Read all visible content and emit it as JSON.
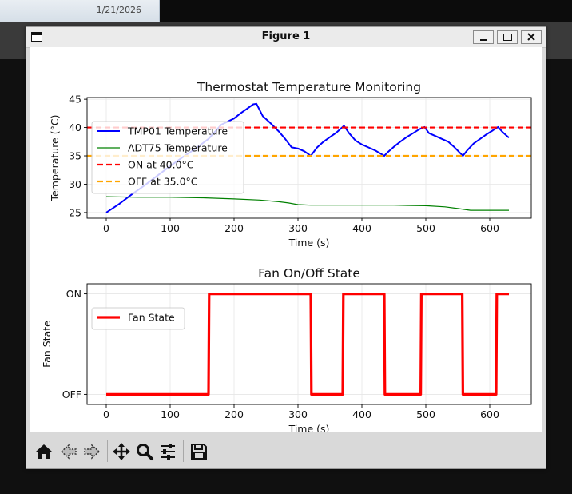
{
  "desktop": {
    "date": "1/21/2026"
  },
  "window": {
    "title": "Figure 1",
    "controls": [
      "minimize",
      "maximize",
      "close"
    ]
  },
  "toolbar": {
    "buttons": [
      {
        "name": "home",
        "icon": "home-icon"
      },
      {
        "name": "back",
        "icon": "back-arrow-icon"
      },
      {
        "name": "forward",
        "icon": "forward-arrow-icon"
      },
      {
        "name": "pan",
        "icon": "move-icon"
      },
      {
        "name": "zoom",
        "icon": "zoom-icon"
      },
      {
        "name": "configure-subplots",
        "icon": "sliders-icon"
      },
      {
        "name": "save",
        "icon": "save-icon"
      }
    ]
  },
  "chart_data": [
    {
      "type": "line",
      "title": "Thermostat Temperature Monitoring",
      "xlabel": "Time (s)",
      "ylabel": "Temperature (°C)",
      "xlim": [
        -30,
        665
      ],
      "ylim": [
        24,
        45.3
      ],
      "xticks": [
        0,
        100,
        200,
        300,
        400,
        500,
        600
      ],
      "yticks": [
        25,
        30,
        35,
        40,
        45
      ],
      "grid": true,
      "legend": "upper-left",
      "series": [
        {
          "name": "TMP01 Temperature",
          "color": "#0000ff",
          "x": [
            0,
            20,
            40,
            60,
            80,
            100,
            120,
            140,
            160,
            180,
            200,
            210,
            220,
            230,
            235,
            245,
            255,
            270,
            280,
            290,
            300,
            310,
            320,
            330,
            340,
            350,
            360,
            372,
            380,
            390,
            400,
            410,
            420,
            435,
            440,
            450,
            460,
            470,
            480,
            490,
            498,
            505,
            515,
            525,
            535,
            545,
            558,
            565,
            575,
            585,
            595,
            605,
            613,
            620,
            630
          ],
          "y": [
            25.0,
            26.5,
            28.2,
            29.8,
            31.5,
            33.2,
            34.8,
            36.3,
            38.0,
            40.5,
            41.6,
            42.5,
            43.3,
            44.1,
            44.2,
            42.0,
            41.0,
            39.3,
            38.0,
            36.5,
            36.3,
            35.8,
            35.0,
            36.5,
            37.5,
            38.3,
            39.1,
            40.3,
            39.0,
            37.7,
            37.0,
            36.5,
            36.0,
            35.0,
            35.6,
            36.6,
            37.5,
            38.3,
            39.0,
            39.7,
            40.1,
            39.0,
            38.5,
            38.0,
            37.5,
            36.5,
            35.0,
            36.0,
            37.2,
            38.0,
            38.8,
            39.5,
            40.1,
            39.2,
            38.2
          ]
        },
        {
          "name": "ADT75 Temperature",
          "color": "#008000",
          "x": [
            0,
            50,
            100,
            150,
            200,
            240,
            270,
            285,
            300,
            320,
            350,
            400,
            450,
            500,
            530,
            550,
            570,
            590,
            610,
            630
          ],
          "y": [
            27.8,
            27.7,
            27.7,
            27.6,
            27.4,
            27.2,
            26.9,
            26.7,
            26.4,
            26.3,
            26.3,
            26.3,
            26.3,
            26.2,
            26.0,
            25.7,
            25.4,
            25.4,
            25.4,
            25.4
          ]
        },
        {
          "name": "ON at 40.0°C",
          "color": "#ff0000",
          "dashed": true,
          "hline": 40.0
        },
        {
          "name": "OFF at 35.0°C",
          "color": "#ffa500",
          "dashed": true,
          "hline": 35.0
        }
      ]
    },
    {
      "type": "line",
      "title": "Fan On/Off State",
      "xlabel": "Time (s)",
      "ylabel": "Fan State",
      "xlim": [
        -30,
        665
      ],
      "ylim": [
        -0.1,
        1.1
      ],
      "xticks": [
        0,
        100,
        200,
        300,
        400,
        500,
        600
      ],
      "ytick_labels": [
        "OFF",
        "ON"
      ],
      "grid": true,
      "legend": "upper-left",
      "series": [
        {
          "name": "Fan State",
          "color": "#ff0000",
          "x": [
            0,
            160,
            161,
            320,
            321,
            370,
            371,
            435,
            436,
            492,
            493,
            557,
            558,
            610,
            611,
            630
          ],
          "y": [
            0,
            0,
            1,
            1,
            0,
            0,
            1,
            1,
            0,
            0,
            1,
            1,
            0,
            0,
            1,
            1
          ]
        }
      ]
    }
  ]
}
